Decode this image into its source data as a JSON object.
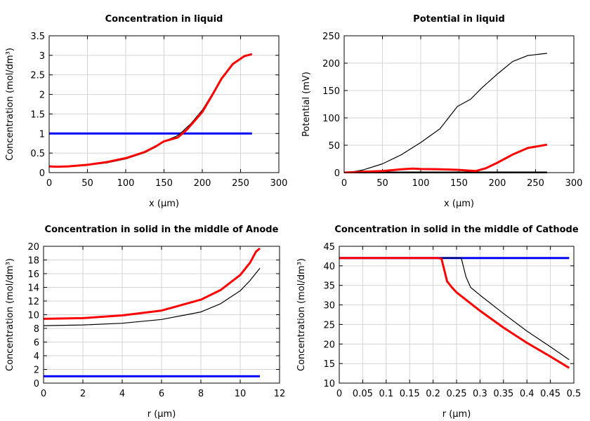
{
  "chart_data": [
    {
      "type": "line",
      "title": "Concentration in liquid",
      "xlabel": "x (µm)",
      "ylabel": "Concentration (mol/dm³)",
      "xlim": [
        0,
        300
      ],
      "ylim": [
        0,
        3.5
      ],
      "xticks": [
        0,
        50,
        100,
        150,
        200,
        250,
        300
      ],
      "yticks": [
        0,
        0.5,
        1,
        1.5,
        2,
        2.5,
        3,
        3.5
      ],
      "grid": true,
      "series": [
        {
          "color": "#0000ff",
          "width": 3,
          "x": [
            0,
            265
          ],
          "y": [
            1,
            1
          ]
        },
        {
          "color": "#000000",
          "width": 1.2,
          "x": [
            0,
            10,
            25,
            50,
            75,
            100,
            125,
            140,
            150,
            165,
            170,
            185,
            200,
            212,
            225,
            240,
            255,
            265
          ],
          "y": [
            0.15,
            0.145,
            0.15,
            0.19,
            0.25,
            0.35,
            0.51,
            0.66,
            0.8,
            0.92,
            0.98,
            1.25,
            1.6,
            1.98,
            2.4,
            2.78,
            2.98,
            3.03
          ]
        },
        {
          "color": "#ff0000",
          "width": 3,
          "x": [
            0,
            10,
            25,
            50,
            75,
            100,
            125,
            140,
            150,
            168,
            180,
            200,
            212,
            225,
            240,
            255,
            265
          ],
          "y": [
            0.16,
            0.15,
            0.16,
            0.2,
            0.27,
            0.37,
            0.53,
            0.68,
            0.8,
            0.9,
            1.1,
            1.55,
            1.95,
            2.4,
            2.78,
            2.98,
            3.03
          ]
        }
      ]
    },
    {
      "type": "line",
      "title": "Potential in liquid",
      "xlabel": "x (µm)",
      "ylabel": "Potential (mV)",
      "xlim": [
        0,
        300
      ],
      "ylim": [
        0,
        250
      ],
      "xticks": [
        0,
        50,
        100,
        150,
        200,
        250,
        300
      ],
      "yticks": [
        0,
        50,
        100,
        150,
        200,
        250
      ],
      "grid": true,
      "series": [
        {
          "color": "#000000",
          "width": 3,
          "x": [
            0,
            265
          ],
          "y": [
            0,
            0
          ]
        },
        {
          "color": "#000000",
          "width": 1.2,
          "x": [
            0,
            10,
            25,
            50,
            75,
            100,
            125,
            148,
            165,
            180,
            200,
            220,
            240,
            265
          ],
          "y": [
            0,
            1,
            5,
            16,
            33,
            55,
            80,
            121,
            134,
            155,
            180,
            203,
            214,
            218
          ]
        },
        {
          "color": "#ff0000",
          "width": 3,
          "x": [
            0,
            25,
            50,
            75,
            90,
            100,
            125,
            150,
            165,
            172,
            185,
            200,
            220,
            240,
            265
          ],
          "y": [
            0,
            1.5,
            3,
            6,
            7.5,
            6.5,
            6,
            5,
            3.5,
            3,
            8,
            18,
            33,
            45,
            51
          ]
        }
      ]
    },
    {
      "type": "line",
      "title": "Concentration in solid in the middle of Anode",
      "xlabel": "r (µm)",
      "ylabel": "Concentration (mol/dm³)",
      "xlim": [
        0,
        12
      ],
      "ylim": [
        0,
        20
      ],
      "xticks": [
        0,
        2,
        4,
        6,
        8,
        10,
        12
      ],
      "yticks": [
        0,
        2,
        4,
        6,
        8,
        10,
        12,
        14,
        16,
        18,
        20
      ],
      "grid": true,
      "series": [
        {
          "color": "#0000ff",
          "width": 3,
          "x": [
            0,
            11
          ],
          "y": [
            1,
            1
          ]
        },
        {
          "color": "#000000",
          "width": 1.2,
          "x": [
            0,
            2,
            4,
            6,
            8,
            9,
            10,
            10.5,
            11
          ],
          "y": [
            8.4,
            8.5,
            8.75,
            9.3,
            10.4,
            11.6,
            13.5,
            15,
            16.8
          ]
        },
        {
          "color": "#ff0000",
          "width": 3,
          "x": [
            0,
            1,
            2,
            4,
            6,
            8,
            9,
            10,
            10.5,
            10.8,
            11
          ],
          "y": [
            9.4,
            9.45,
            9.5,
            9.9,
            10.6,
            12.2,
            13.6,
            15.8,
            17.6,
            19.2,
            19.7
          ]
        }
      ]
    },
    {
      "type": "line",
      "title": "Concentration in solid in the middle of Cathode",
      "xlabel": "r (µm)",
      "ylabel": "Concentration (mol/dm³)",
      "xlim": [
        0,
        0.5
      ],
      "ylim": [
        10,
        45
      ],
      "xticks": [
        0,
        0.05,
        0.1,
        0.15,
        0.2,
        0.25,
        0.3,
        0.35,
        0.4,
        0.45,
        0.5
      ],
      "yticks": [
        10,
        15,
        20,
        25,
        30,
        35,
        40,
        45
      ],
      "grid": true,
      "series": [
        {
          "color": "#0000ff",
          "width": 3,
          "x": [
            0,
            0.49
          ],
          "y": [
            42,
            42
          ]
        },
        {
          "color": "#000000",
          "width": 1.2,
          "x": [
            0,
            0.26,
            0.27,
            0.28,
            0.3,
            0.35,
            0.4,
            0.45,
            0.49
          ],
          "y": [
            42,
            42,
            37.2,
            34.5,
            32.5,
            27.8,
            23.3,
            19.3,
            16
          ]
        },
        {
          "color": "#ff0000",
          "width": 3,
          "x": [
            0,
            0.21,
            0.218,
            0.23,
            0.24,
            0.25,
            0.3,
            0.35,
            0.4,
            0.45,
            0.49
          ],
          "y": [
            42,
            42,
            41.8,
            36,
            34.5,
            33.2,
            28.5,
            24.2,
            20.3,
            16.8,
            13.9
          ]
        }
      ]
    }
  ]
}
